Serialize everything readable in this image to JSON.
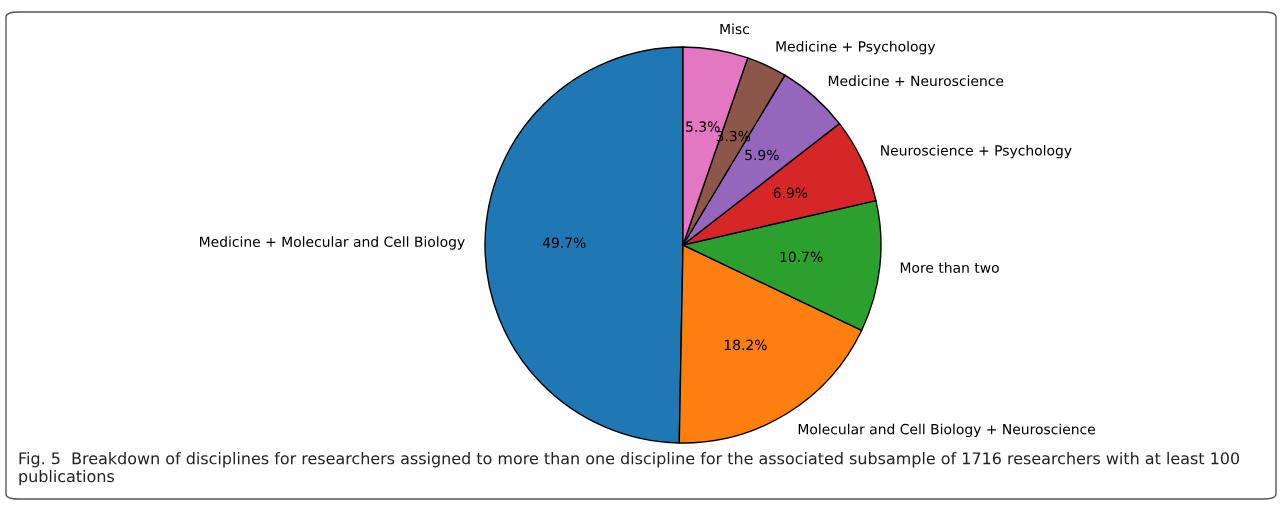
{
  "chart_data": {
    "type": "pie",
    "categories": [
      "Medicine + Molecular and Cell Biology",
      "Molecular and Cell Biology + Neuroscience",
      "More than two",
      "Neuroscience + Psychology",
      "Medicine + Neuroscience",
      "Medicine + Psychology",
      "Misc"
    ],
    "values": [
      49.7,
      18.2,
      10.7,
      6.9,
      5.9,
      3.3,
      5.3
    ],
    "colors": [
      "#1f77b4",
      "#ff7f0e",
      "#2ca02c",
      "#d62728",
      "#9467bd",
      "#8c564b",
      "#e377c2"
    ],
    "value_labels": [
      "49.7%",
      "18.2%",
      "10.7%",
      "6.9%",
      "5.9%",
      "3.3%",
      "5.3%"
    ],
    "annotations": [
      "Fig. 5  Breakdown of disciplines for researchers assigned to more than one discipline for the associated subsample of 1716 researchers with at least 100 publications"
    ]
  }
}
